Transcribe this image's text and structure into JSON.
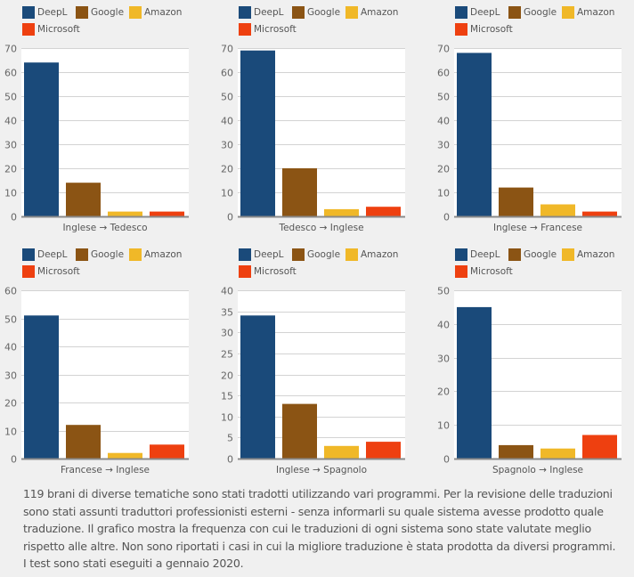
{
  "legend": [
    {
      "name": "DeepL",
      "color": "#1a4a7a"
    },
    {
      "name": "Google",
      "color": "#8b5414"
    },
    {
      "name": "Amazon",
      "color": "#f0b828"
    },
    {
      "name": "Microsoft",
      "color": "#ee4010"
    }
  ],
  "chart_data": [
    {
      "type": "bar",
      "title": "",
      "xlabel": "Inglese → Tedesco",
      "ylabel": "",
      "ylim": [
        0,
        70
      ],
      "yticks": [
        0,
        10,
        20,
        30,
        40,
        50,
        60,
        70
      ],
      "categories": [
        "DeepL",
        "Google",
        "Amazon",
        "Microsoft"
      ],
      "values": [
        64,
        14,
        2,
        2
      ],
      "grid": true,
      "legend_placement": "top-left"
    },
    {
      "type": "bar",
      "title": "",
      "xlabel": "Tedesco → Inglese",
      "ylabel": "",
      "ylim": [
        0,
        70
      ],
      "yticks": [
        0,
        10,
        20,
        30,
        40,
        50,
        60,
        70
      ],
      "categories": [
        "DeepL",
        "Google",
        "Amazon",
        "Microsoft"
      ],
      "values": [
        69,
        20,
        3,
        4
      ],
      "grid": true,
      "legend_placement": "top-left"
    },
    {
      "type": "bar",
      "title": "",
      "xlabel": "Inglese → Francese",
      "ylabel": "",
      "ylim": [
        0,
        70
      ],
      "yticks": [
        0,
        10,
        20,
        30,
        40,
        50,
        60,
        70
      ],
      "categories": [
        "DeepL",
        "Google",
        "Amazon",
        "Microsoft"
      ],
      "values": [
        68,
        12,
        5,
        2
      ],
      "grid": true,
      "legend_placement": "top-left"
    },
    {
      "type": "bar",
      "title": "",
      "xlabel": "Francese → Inglese",
      "ylabel": "",
      "ylim": [
        0,
        60
      ],
      "yticks": [
        0,
        10,
        20,
        30,
        40,
        50,
        60
      ],
      "categories": [
        "DeepL",
        "Google",
        "Amazon",
        "Microsoft"
      ],
      "values": [
        51,
        12,
        2,
        5
      ],
      "grid": true,
      "legend_placement": "top-left"
    },
    {
      "type": "bar",
      "title": "",
      "xlabel": "Inglese → Spagnolo",
      "ylabel": "",
      "ylim": [
        0,
        40
      ],
      "yticks": [
        0,
        5,
        10,
        15,
        20,
        25,
        30,
        35,
        40
      ],
      "categories": [
        "DeepL",
        "Google",
        "Amazon",
        "Microsoft"
      ],
      "values": [
        34,
        13,
        3,
        4
      ],
      "grid": true,
      "legend_placement": "top-left"
    },
    {
      "type": "bar",
      "title": "",
      "xlabel": "Spagnolo → Inglese",
      "ylabel": "",
      "ylim": [
        0,
        50
      ],
      "yticks": [
        0,
        10,
        20,
        30,
        40,
        50
      ],
      "categories": [
        "DeepL",
        "Google",
        "Amazon",
        "Microsoft"
      ],
      "values": [
        45,
        4,
        3,
        7
      ],
      "grid": true,
      "legend_placement": "top-left"
    }
  ],
  "caption": "119 brani di diverse tematiche sono stati tradotti utilizzando vari programmi. Per la revisione delle traduzioni sono stati assunti traduttori professionisti esterni - senza informarli su quale sistema avesse prodotto quale traduzione. Il grafico mostra la frequenza con cui le traduzioni di ogni sistema sono state valutate meglio rispetto alle altre. Non sono riportati i casi in cui la migliore traduzione è stata prodotta da diversi programmi. I test sono stati eseguiti a gennaio 2020."
}
